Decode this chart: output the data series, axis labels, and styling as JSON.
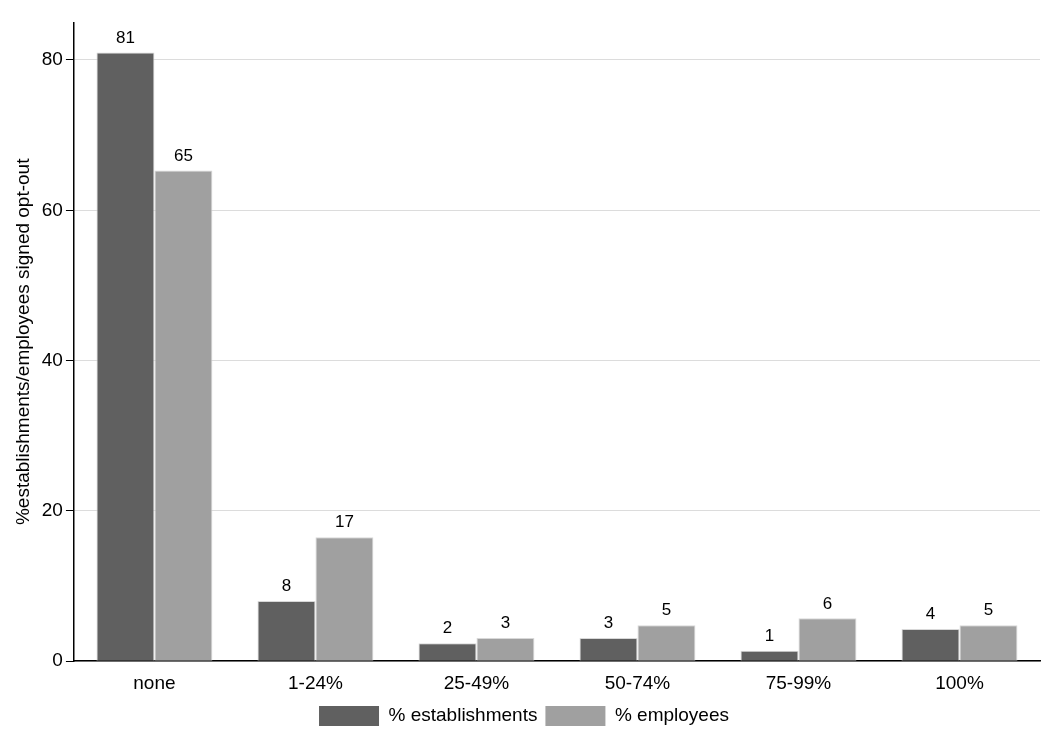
{
  "chart_data": {
    "type": "bar",
    "ylabel": "%establishments/employees signed opt-out",
    "categories": [
      "none",
      "1-24%",
      "25-49%",
      "50-74%",
      "75-99%",
      "100%"
    ],
    "series": [
      {
        "name": "% establishments",
        "color": "#606060",
        "values": [
          81,
          8,
          2.4,
          3.1,
          1.4,
          4.3
        ],
        "value_labels": [
          "81",
          "8",
          "2",
          "3",
          "1",
          "4"
        ]
      },
      {
        "name": "% employees",
        "color": "#a0a0a0",
        "values": [
          65.3,
          16.5,
          3.1,
          4.8,
          5.7,
          4.8
        ],
        "value_labels": [
          "65",
          "17",
          "3",
          "5",
          "6",
          "5"
        ]
      }
    ],
    "ylim": [
      0,
      85
    ],
    "yticks": [
      0,
      20,
      40,
      60,
      80
    ],
    "grid": "y",
    "legend": "bottom"
  }
}
